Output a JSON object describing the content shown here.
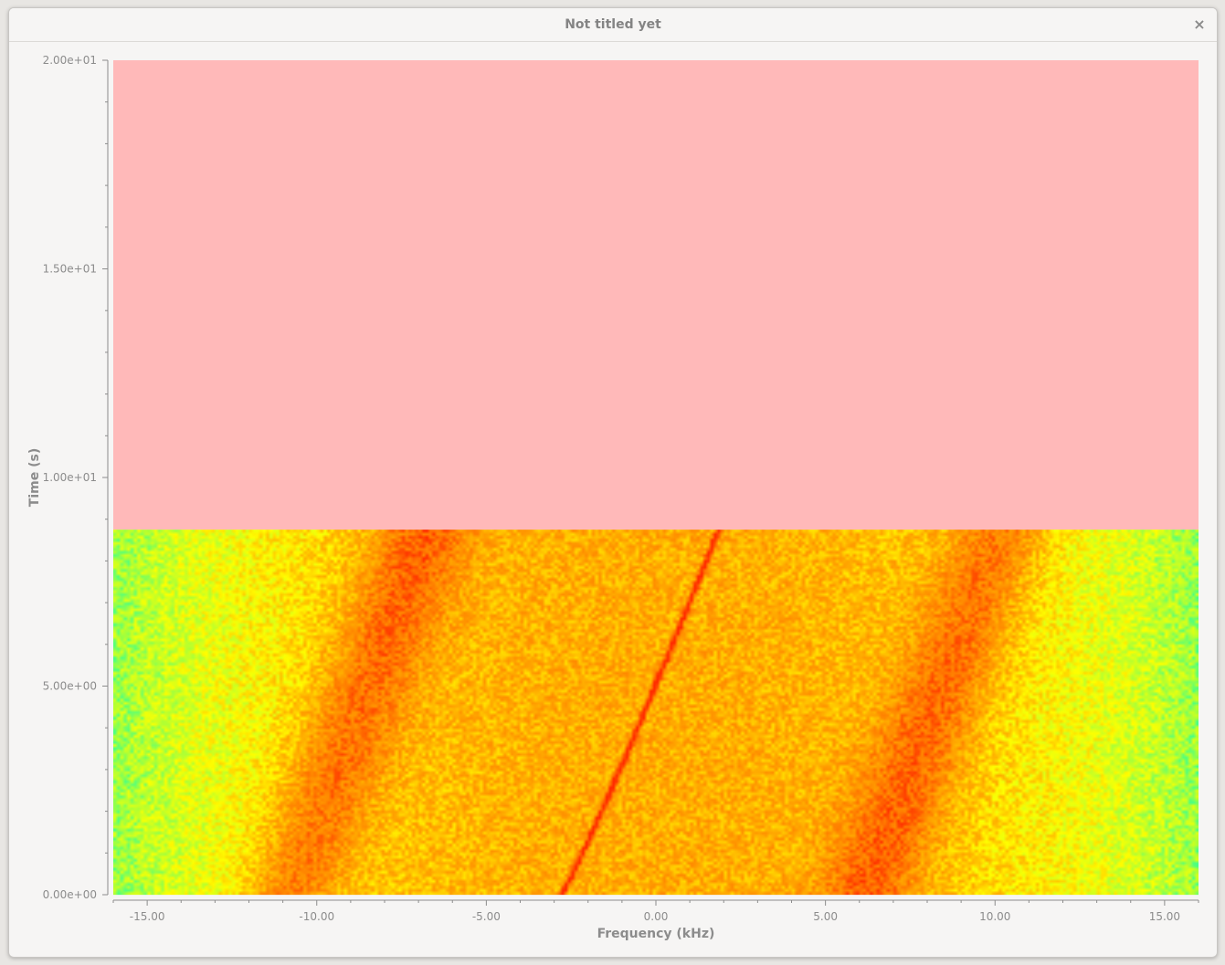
{
  "window": {
    "title": "Not titled yet",
    "close_glyph": "×",
    "close_icon": "close-icon"
  },
  "chart_data": {
    "type": "heatmap",
    "title": "",
    "xlabel": "Frequency (kHz)",
    "ylabel": "Time (s)",
    "xlim": [
      -16,
      16
    ],
    "ylim": [
      0,
      20
    ],
    "x_ticks": [
      -15,
      -10,
      -5,
      0,
      5,
      10,
      15
    ],
    "x_tick_labels": [
      "-15.00",
      "-10.00",
      "-5.00",
      "0.00",
      "5.00",
      "10.00",
      "15.00"
    ],
    "y_ticks": [
      0,
      5,
      10,
      15,
      20
    ],
    "y_tick_labels": [
      "0.00e+00",
      "5.00e+00",
      "1.00e+01",
      "1.50e+01",
      "2.00e+01"
    ],
    "data_time_range": [
      0,
      8.75
    ],
    "empty_region_color": "#ffb9b9",
    "colormap": [
      "#00ffbe",
      "#a6ff3a",
      "#ffff00",
      "#ffb000",
      "#ff7a00",
      "#ff2a00"
    ],
    "bands": [
      {
        "name": "",
        "freq_at_t0": -10.8,
        "freq_at_t_end": -6.8,
        "width_khz": 2.6,
        "intensity": 0.92
      },
      {
        "name": "",
        "freq_at_t0": 6.2,
        "freq_at_t_end": 10.2,
        "width_khz": 2.6,
        "intensity": 0.92
      }
    ],
    "tone": {
      "name": "",
      "freq_at_t0": -2.8,
      "freq_at_t_end": 1.85,
      "intensity": 1.0
    }
  }
}
